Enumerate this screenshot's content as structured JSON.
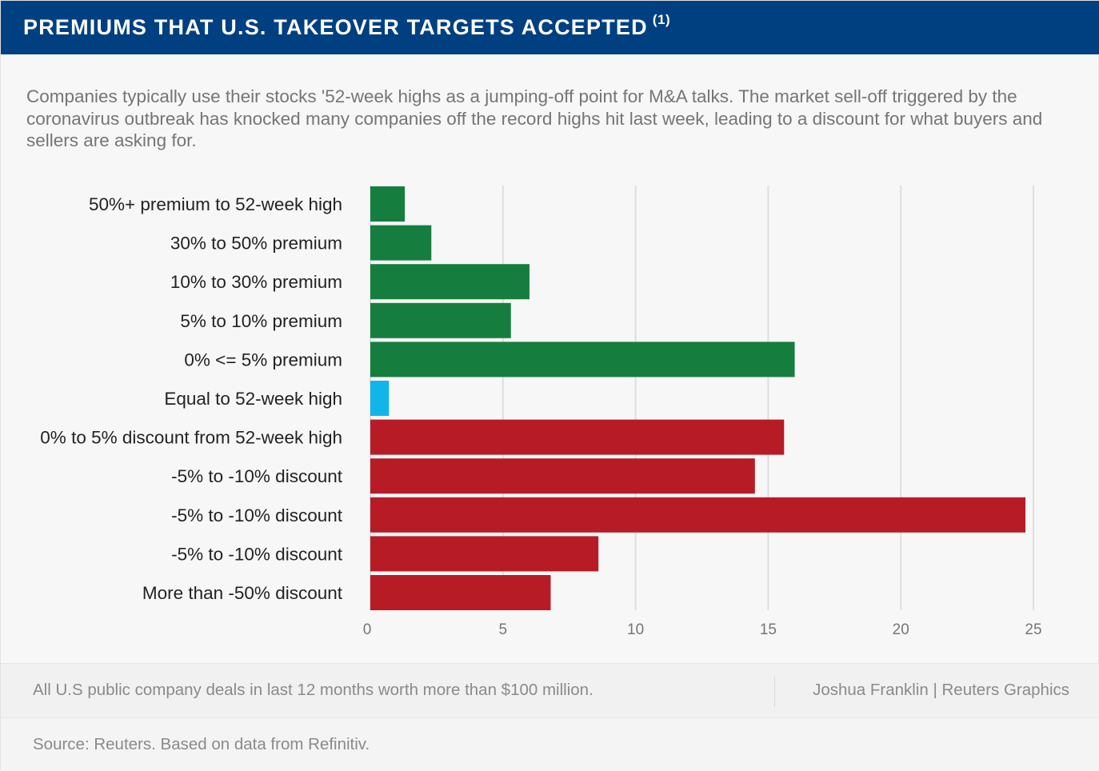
{
  "header": {
    "title": "PREMIUMS THAT U.S. TAKEOVER TARGETS ACCEPTED",
    "footnote_marker": "(1)"
  },
  "description": "Companies typically use their stocks '52-week highs as a jumping-off point for M&A talks. The market sell-off triggered by the coronavirus outbreak has knocked many companies off the record highs hit last week, leading to a discount for what buyers and sellers are asking for.",
  "colors": {
    "header_bg": "#004080",
    "premium": "#157e3f",
    "equal": "#12b5ea",
    "discount": "#b71c26",
    "grid": "#dedede"
  },
  "chart_data": {
    "type": "bar",
    "orientation": "horizontal",
    "title": "PREMIUMS THAT U.S. TAKEOVER TARGETS ACCEPTED",
    "xlabel": "",
    "ylabel": "",
    "xlim": [
      0,
      25
    ],
    "xticks": [
      0,
      5,
      10,
      15,
      20,
      25
    ],
    "grid": true,
    "categories": [
      "50%+ premium to 52-week high",
      "30% to 50% premium",
      "10% to 30% premium",
      "5% to 10% premium",
      "0% <= 5% premium",
      "Equal to 52-week high",
      "0% to 5% discount from 52-week high",
      "-5% to -10% discount",
      "-5% to -10% discount",
      "-5% to -10% discount",
      "More than -50% discount"
    ],
    "values": [
      1.3,
      2.3,
      6,
      5.3,
      16,
      0.7,
      15.6,
      14.5,
      24.7,
      8.6,
      6.8
    ],
    "groups": [
      "premium",
      "premium",
      "premium",
      "premium",
      "premium",
      "equal",
      "discount",
      "discount",
      "discount",
      "discount",
      "discount"
    ]
  },
  "footer": {
    "note": "All U.S public company deals in last 12 months worth more than $100 million.",
    "credit": "Joshua Franklin | Reuters Graphics",
    "source": "Source: Reuters. Based on data from Refinitiv."
  }
}
